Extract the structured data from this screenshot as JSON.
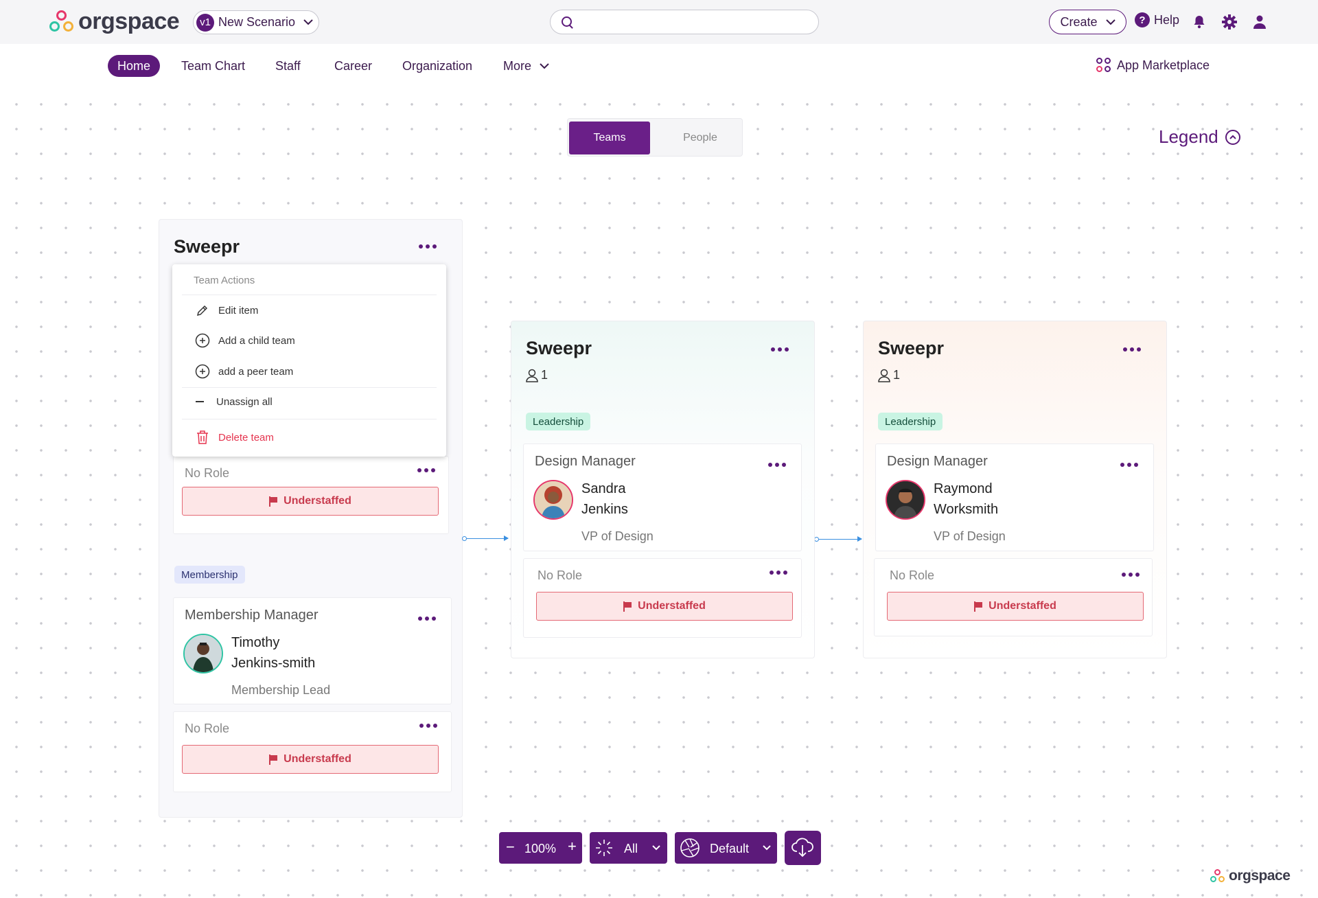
{
  "header": {
    "brand": "orgspace",
    "scenario": {
      "version": "v1",
      "label": "New Scenario"
    },
    "search": {
      "value": "",
      "placeholder": ""
    },
    "create_label": "Create",
    "help_label": "Help",
    "icons": [
      "bell-icon",
      "gear-icon",
      "user-icon"
    ]
  },
  "nav": {
    "items": [
      {
        "label": "Home",
        "active": true
      },
      {
        "label": "Team Chart"
      },
      {
        "label": "Staff"
      },
      {
        "label": "Career"
      },
      {
        "label": "Organization"
      },
      {
        "label": "More"
      }
    ],
    "marketplace_label": "App Marketplace"
  },
  "view_toggle": {
    "teams": "Teams",
    "people": "People",
    "selected": "Teams"
  },
  "legend_label": "Legend",
  "menu": {
    "header": "Team Actions",
    "items": [
      {
        "label": "Edit item",
        "icon": "pencil-icon"
      },
      {
        "label": "Add a child team",
        "icon": "plus-circle-icon"
      },
      {
        "label": "add a peer team",
        "icon": "plus-circle-icon"
      },
      {
        "label": "Unassign all",
        "icon": "minus-icon"
      },
      {
        "label": "Delete team",
        "icon": "trash-icon"
      }
    ]
  },
  "teams": [
    {
      "name": "Sweepr",
      "cards": [
        {
          "role": "No Role",
          "status": "Understaffed"
        }
      ],
      "membership_tag": "Membership",
      "membership_cards": [
        {
          "role": "Membership Manager",
          "person_line1": "Timothy",
          "person_line2": "Jenkins-smith",
          "person_title": "Membership Lead"
        },
        {
          "role": "No Role",
          "status": "Understaffed"
        }
      ]
    },
    {
      "name": "Sweepr",
      "member_count": "1",
      "tag": "Leadership",
      "cards": [
        {
          "role": "Design Manager",
          "person_line1": "Sandra",
          "person_line2": "Jenkins",
          "person_title": "VP of Design"
        },
        {
          "role": "No Role",
          "status": "Understaffed"
        }
      ]
    },
    {
      "name": "Sweepr",
      "member_count": "1",
      "tag": "Leadership",
      "cards": [
        {
          "role": "Design Manager",
          "person_line1": "Raymond",
          "person_line2": "Worksmith",
          "person_title": "VP of Design"
        },
        {
          "role": "No Role",
          "status": "Understaffed"
        }
      ]
    }
  ],
  "toolbar": {
    "zoom": "100%",
    "filter": "All",
    "theme": "Default",
    "download_icon": "cloud-download-icon"
  },
  "colors": {
    "primary": "#5c1a7a",
    "leadership_tag": "#c9f4e3",
    "membership_tag": "#e3e7fb",
    "understaffed_bg": "#fde6e7",
    "understaffed_text": "#c83a4d",
    "team2_tint": "#eef8f6",
    "team3_tint": "#fdf3ee"
  }
}
